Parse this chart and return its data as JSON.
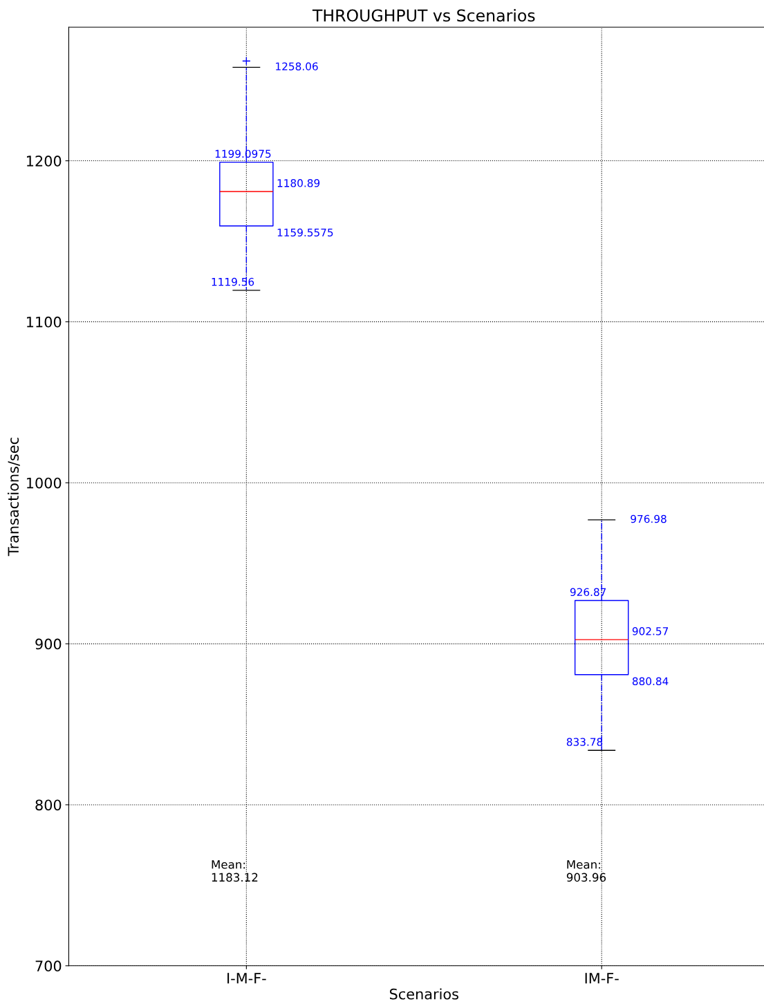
{
  "chart_data": {
    "type": "box",
    "title": "THROUGHPUT vs Scenarios",
    "xlabel": "Scenarios",
    "ylabel": "Transactions/sec",
    "categories": [
      "I-M-F-",
      "IM-F-"
    ],
    "boxes": [
      {
        "low": 1119.56,
        "q1": 1159.5575,
        "median": 1180.89,
        "q3": 1199.0975,
        "high": 1258.06,
        "outliers": [
          1262
        ]
      },
      {
        "low": 833.78,
        "q1": 880.84,
        "median": 902.57,
        "q3": 926.87,
        "high": 976.98
      }
    ],
    "color": "#0000ff",
    "marker": "cross",
    "grid": true,
    "ylim": [
      700,
      1283
    ],
    "yticks": [
      700,
      800,
      900,
      1000,
      1100,
      1200
    ],
    "annotations": [
      {
        "text": "1258.06",
        "x": "I-M-F-",
        "y": 1258.06
      },
      {
        "text": "1199.0975",
        "x": "I-M-F-",
        "y": 1199.0975
      },
      {
        "text": "1180.89",
        "x": "I-M-F-",
        "y": 1180.89
      },
      {
        "text": "1159.5575",
        "x": "I-M-F-",
        "y": 1159.5575
      },
      {
        "text": "1119.56",
        "x": "I-M-F-",
        "y": 1119.56
      },
      {
        "text": "976.98",
        "x": "IM-F-",
        "y": 976.98
      },
      {
        "text": "926.87",
        "x": "IM-F-",
        "y": 926.87
      },
      {
        "text": "902.57",
        "x": "IM-F-",
        "y": 902.57
      },
      {
        "text": "880.84",
        "x": "IM-F-",
        "y": 880.84
      },
      {
        "text": "833.78",
        "x": "IM-F-",
        "y": 833.78
      },
      "Mean:\n1183.12",
      "Mean:\n903.96"
    ]
  }
}
